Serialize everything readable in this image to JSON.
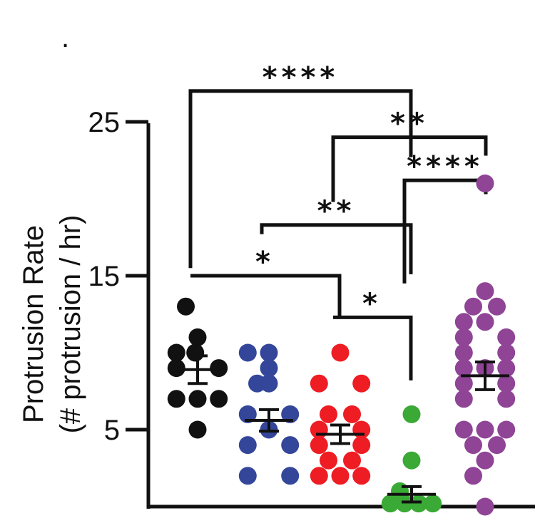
{
  "chart_data": {
    "type": "scatter",
    "title": "",
    "xlabel": "",
    "ylabel_line1": "Protrusion Rate",
    "ylabel_line2": "(# protrusion / hr)",
    "ylim": [
      0,
      25
    ],
    "yticks": [
      5,
      15,
      25
    ],
    "ytick_labels": [
      "5",
      "15",
      "25"
    ],
    "corner_mark": ".",
    "groups": [
      {
        "name": "group-black",
        "color": "#111111",
        "mean": 8.9,
        "sem_low": 8.0,
        "sem_high": 9.8,
        "points": [
          {
            "x": -0.5,
            "y": 13
          },
          {
            "x": -0.9,
            "y": 10
          },
          {
            "x": -0.1,
            "y": 10
          },
          {
            "x": 0.0,
            "y": 11
          },
          {
            "x": -0.9,
            "y": 9
          },
          {
            "x": 0.9,
            "y": 9
          },
          {
            "x": -0.9,
            "y": 7
          },
          {
            "x": 0.0,
            "y": 7
          },
          {
            "x": 0.9,
            "y": 7
          },
          {
            "x": 0.0,
            "y": 5
          }
        ]
      },
      {
        "name": "group-blue",
        "color": "#34469a",
        "mean": 5.6,
        "sem_low": 4.9,
        "sem_high": 6.3,
        "points": [
          {
            "x": -0.9,
            "y": 10
          },
          {
            "x": 0.0,
            "y": 10
          },
          {
            "x": 0.0,
            "y": 9
          },
          {
            "x": -0.5,
            "y": 8
          },
          {
            "x": 0.0,
            "y": 8
          },
          {
            "x": -0.9,
            "y": 6
          },
          {
            "x": 0.9,
            "y": 6
          },
          {
            "x": 0.0,
            "y": 5
          },
          {
            "x": -0.9,
            "y": 4
          },
          {
            "x": 0.9,
            "y": 4
          },
          {
            "x": -0.9,
            "y": 2
          },
          {
            "x": 0.9,
            "y": 2
          }
        ]
      },
      {
        "name": "group-red",
        "color": "#ee1c23",
        "mean": 4.7,
        "sem_low": 4.1,
        "sem_high": 5.3,
        "points": [
          {
            "x": 0.0,
            "y": 10
          },
          {
            "x": -0.9,
            "y": 8
          },
          {
            "x": 0.9,
            "y": 8
          },
          {
            "x": -0.5,
            "y": 6
          },
          {
            "x": 0.5,
            "y": 6
          },
          {
            "x": -0.9,
            "y": 5
          },
          {
            "x": 0.9,
            "y": 5
          },
          {
            "x": -0.9,
            "y": 4
          },
          {
            "x": 0.9,
            "y": 4
          },
          {
            "x": -0.5,
            "y": 3
          },
          {
            "x": 0.5,
            "y": 3
          },
          {
            "x": -0.9,
            "y": 2
          },
          {
            "x": 0.0,
            "y": 2
          },
          {
            "x": 0.9,
            "y": 2
          }
        ]
      },
      {
        "name": "group-green",
        "color": "#3aa935",
        "mean": 0.8,
        "sem_low": 0.3,
        "sem_high": 1.3,
        "points": [
          {
            "x": 0.0,
            "y": 6
          },
          {
            "x": 0.0,
            "y": 3
          },
          {
            "x": -0.5,
            "y": 1
          },
          {
            "x": -0.9,
            "y": 0.2
          },
          {
            "x": -0.3,
            "y": 0.2
          },
          {
            "x": 0.3,
            "y": 0.2
          },
          {
            "x": 0.9,
            "y": 0.2
          }
        ]
      },
      {
        "name": "group-purple",
        "color": "#8f4496",
        "mean": 8.5,
        "sem_low": 7.6,
        "sem_high": 9.4,
        "points": [
          {
            "x": 0.0,
            "y": 21
          },
          {
            "x": 0.0,
            "y": 14
          },
          {
            "x": -0.5,
            "y": 13
          },
          {
            "x": 0.5,
            "y": 13
          },
          {
            "x": -0.9,
            "y": 12
          },
          {
            "x": 0.0,
            "y": 12
          },
          {
            "x": -0.9,
            "y": 11
          },
          {
            "x": 0.9,
            "y": 11
          },
          {
            "x": -0.9,
            "y": 10
          },
          {
            "x": 0.9,
            "y": 10
          },
          {
            "x": -0.9,
            "y": 9
          },
          {
            "x": 0.0,
            "y": 9
          },
          {
            "x": 0.9,
            "y": 9
          },
          {
            "x": -0.9,
            "y": 8
          },
          {
            "x": 0.9,
            "y": 8
          },
          {
            "x": -0.9,
            "y": 7
          },
          {
            "x": 0.9,
            "y": 7
          },
          {
            "x": -0.9,
            "y": 5
          },
          {
            "x": 0.0,
            "y": 5
          },
          {
            "x": 0.9,
            "y": 5
          },
          {
            "x": -0.5,
            "y": 4
          },
          {
            "x": 0.5,
            "y": 4
          },
          {
            "x": 0.0,
            "y": 3
          },
          {
            "x": -0.5,
            "y": 2
          },
          {
            "x": 0.0,
            "y": 0
          }
        ]
      }
    ],
    "significance": [
      {
        "label": "****",
        "from_group": 0,
        "to_group": 3,
        "from_y": 15.5,
        "to_y": 22.7,
        "bar_y": 27.0
      },
      {
        "label": "**",
        "from_group": 2,
        "to_group": 4,
        "from_y": 19.8,
        "to_y": 22.8,
        "bar_y": 24.0
      },
      {
        "label": "****",
        "from_group": 3,
        "to_group": 4,
        "from_y": 14.5,
        "to_y": 20.3,
        "bar_y": 21.2
      },
      {
        "label": "**",
        "from_group": 1,
        "to_group": 3,
        "from_y": 17.7,
        "to_y": 15.1,
        "bar_y": 18.3
      },
      {
        "label": "*",
        "from_group": 0,
        "to_group": 2,
        "from_y": 15.0,
        "to_y": 12.3,
        "bar_y": 15.0
      },
      {
        "label": "*",
        "from_group": 2,
        "to_group": 3,
        "from_y": 12.3,
        "to_y": 8.2,
        "bar_y": 12.3
      }
    ]
  }
}
